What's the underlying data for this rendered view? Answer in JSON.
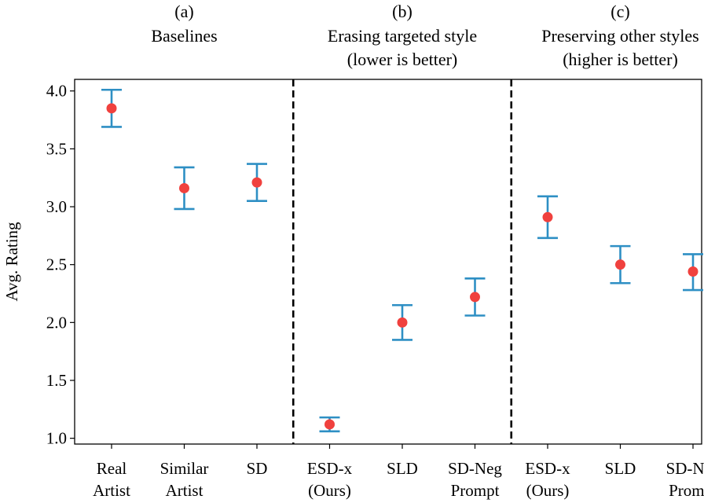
{
  "chart_data": {
    "type": "scatter",
    "ylabel": "Avg. Rating",
    "ylim": [
      0.95,
      4.1
    ],
    "yticks": [
      1.0,
      1.5,
      2.0,
      2.5,
      3.0,
      3.5,
      4.0
    ],
    "ytick_labels": [
      "1.0",
      "1.5",
      "2.0",
      "2.5",
      "3.0",
      "3.5",
      "4.0"
    ],
    "grid": false,
    "colors": {
      "marker": "#f0413e",
      "errorbar": "#2e8fc4",
      "separator": "#000000"
    },
    "panels": [
      {
        "letter": "(a)",
        "title_lines": [
          "Baselines"
        ],
        "points": [
          {
            "label_lines": [
              "Real",
              "Artist"
            ],
            "value": 3.85,
            "err_low": 3.69,
            "err_high": 4.01
          },
          {
            "label_lines": [
              "Similar",
              "Artist"
            ],
            "value": 3.16,
            "err_low": 2.98,
            "err_high": 3.34
          },
          {
            "label_lines": [
              "SD"
            ],
            "value": 3.21,
            "err_low": 3.05,
            "err_high": 3.37
          }
        ]
      },
      {
        "letter": "(b)",
        "title_lines": [
          "Erasing targeted style",
          "(lower is better)"
        ],
        "points": [
          {
            "label_lines": [
              "ESD-x",
              "(Ours)"
            ],
            "value": 1.12,
            "err_low": 1.06,
            "err_high": 1.18
          },
          {
            "label_lines": [
              "SLD"
            ],
            "value": 2.0,
            "err_low": 1.85,
            "err_high": 2.15
          },
          {
            "label_lines": [
              "SD-Neg",
              "Prompt"
            ],
            "value": 2.22,
            "err_low": 2.06,
            "err_high": 2.38
          }
        ]
      },
      {
        "letter": "(c)",
        "title_lines": [
          "Preserving other styles",
          "(higher is better)"
        ],
        "points": [
          {
            "label_lines": [
              "ESD-x",
              "(Ours)"
            ],
            "value": 2.91,
            "err_low": 2.73,
            "err_high": 3.09
          },
          {
            "label_lines": [
              "SLD"
            ],
            "value": 2.5,
            "err_low": 2.34,
            "err_high": 2.66
          },
          {
            "label_lines": [
              "SD-Neg",
              "Prompt"
            ],
            "value": 2.44,
            "err_low": 2.28,
            "err_high": 2.59
          }
        ]
      }
    ]
  }
}
